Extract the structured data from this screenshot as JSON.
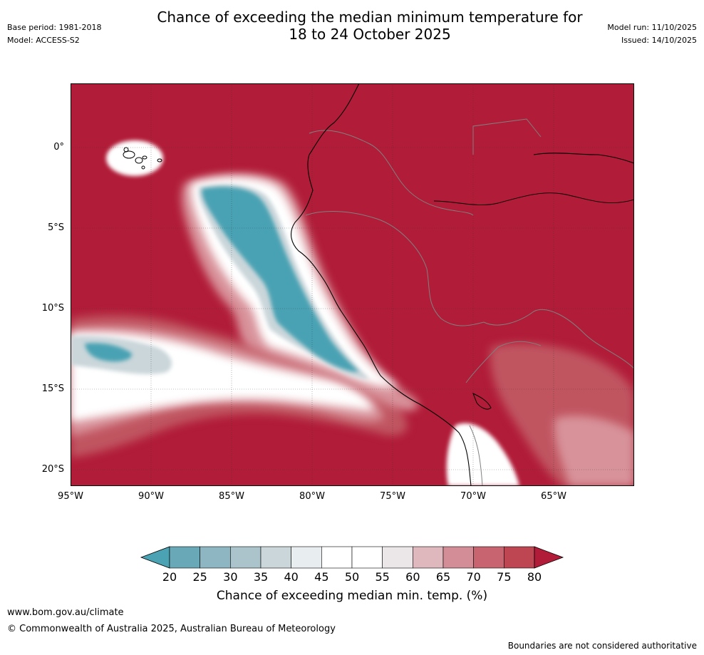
{
  "header": {
    "title_line1": "Chance of exceeding the median minimum temperature for",
    "title_line2": "18 to 24 October 2025",
    "base_period": "Base period: 1981-2018",
    "model": "Model: ACCESS-S2",
    "model_run": "Model run: 11/10/2025",
    "issued": "Issued: 14/10/2025"
  },
  "map": {
    "lat_ticks": [
      "0°",
      "5°S",
      "10°S",
      "15°S",
      "20°S"
    ],
    "lon_ticks": [
      "95°W",
      "90°W",
      "85°W",
      "80°W",
      "75°W",
      "70°W",
      "65°W"
    ],
    "extent": {
      "lon_min": -95,
      "lon_max": -60,
      "lat_min": -21,
      "lat_max": 4
    },
    "colors": {
      "high": "#b11c38",
      "mid_high": "#c05461",
      "mid": "#d8929a",
      "white": "#ffffff",
      "light_blue": "#cad6da",
      "blue": "#4aa2b3",
      "coast": "#000000",
      "border": "#808080"
    }
  },
  "colorbar": {
    "labels": [
      "20",
      "25",
      "30",
      "35",
      "40",
      "45",
      "50",
      "55",
      "60",
      "65",
      "70",
      "75",
      "80"
    ],
    "colors": [
      "#4aa2b3",
      "#68a8b7",
      "#8db6c2",
      "#abc4cb",
      "#cbd6da",
      "#e8eef0",
      "#ffffff",
      "#ffffff",
      "#ebe6e7",
      "#dfb8bd",
      "#d38d96",
      "#c7646f",
      "#bd4652",
      "#b11c38"
    ],
    "title": "Chance of exceeding median min. temp. (%)"
  },
  "footer": {
    "url": "www.bom.gov.au/climate",
    "copyright": "© Commonwealth of Australia 2025, Australian Bureau of Meteorology",
    "disclaimer": "Boundaries are not considered authoritative"
  }
}
